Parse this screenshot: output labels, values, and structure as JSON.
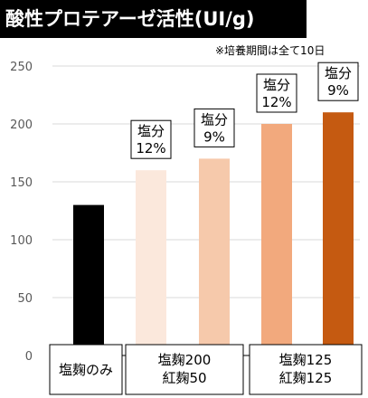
{
  "chart_data": {
    "type": "bar",
    "title": "酸性プロテアーゼ活性(UI/g)",
    "note": "※培養期間は全て10日",
    "ylim": [
      0,
      250
    ],
    "yticks": [
      "0",
      "50",
      "100",
      "150",
      "200",
      "250"
    ],
    "grid": true,
    "bars": [
      {
        "value": 130,
        "color": "#000000",
        "label": ""
      },
      {
        "value": 160,
        "color": "#fbe8dc",
        "label": "塩分\n12%"
      },
      {
        "value": 170,
        "color": "#f6c9ab",
        "label": "塩分\n9%"
      },
      {
        "value": 200,
        "color": "#f2a97d",
        "label": "塩分\n12%"
      },
      {
        "value": 210,
        "color": "#c55a11",
        "label": "塩分\n9%"
      }
    ],
    "groups": [
      {
        "label": "塩麹のみ",
        "bars": [
          0
        ]
      },
      {
        "label": "塩麹200\n紅麹50",
        "bars": [
          1,
          2
        ]
      },
      {
        "label": "塩麹125\n紅麹125",
        "bars": [
          3,
          4
        ]
      }
    ]
  }
}
